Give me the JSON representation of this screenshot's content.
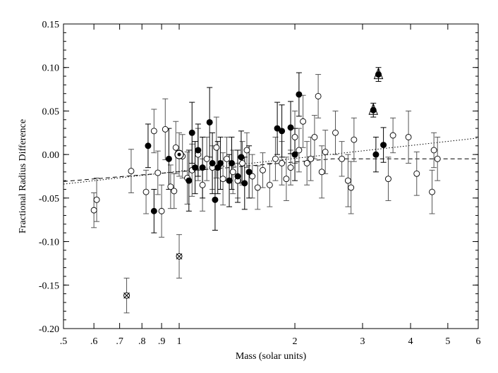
{
  "chart_data": {
    "type": "scatter",
    "title": "",
    "xlabel": "Mass (solar units)",
    "ylabel": "Fractional Radius Difference",
    "xscale": "log",
    "xlim": [
      0.5,
      6
    ],
    "ylim": [
      -0.2,
      0.15
    ],
    "grid": false,
    "x_ticks": [
      {
        "value": 0.5,
        "label": ".5"
      },
      {
        "value": 0.6,
        "label": ".6"
      },
      {
        "value": 0.7,
        "label": ".7"
      },
      {
        "value": 0.8,
        "label": ".8"
      },
      {
        "value": 0.9,
        "label": ".9"
      },
      {
        "value": 1,
        "label": "1"
      },
      {
        "value": 2,
        "label": "2"
      },
      {
        "value": 3,
        "label": "3"
      },
      {
        "value": 4,
        "label": "4"
      },
      {
        "value": 5,
        "label": "5"
      },
      {
        "value": 6,
        "label": "6"
      }
    ],
    "y_ticks": [
      {
        "value": 0.15,
        "label": "0.15"
      },
      {
        "value": 0.1,
        "label": "0.10"
      },
      {
        "value": 0.05,
        "label": "0.05"
      },
      {
        "value": 0.0,
        "label": "0.00"
      },
      {
        "value": -0.05,
        "label": "-0.05"
      },
      {
        "value": -0.1,
        "label": "-0.10"
      },
      {
        "value": -0.15,
        "label": "-0.15"
      },
      {
        "value": -0.2,
        "label": "-0.20"
      }
    ],
    "trend_lines": [
      {
        "style": "dotted",
        "points": [
          [
            0.5,
            -0.034
          ],
          [
            6,
            0.019
          ]
        ]
      },
      {
        "style": "dashed",
        "points": [
          [
            0.5,
            -0.031
          ],
          [
            2.5,
            -0.005
          ],
          [
            6,
            -0.005
          ]
        ]
      }
    ],
    "series": [
      {
        "marker": "open-circle",
        "points": [
          {
            "x": 0.6,
            "y": -0.064,
            "err": 0.02
          },
          {
            "x": 0.61,
            "y": -0.052,
            "err": 0.025
          },
          {
            "x": 0.75,
            "y": -0.019,
            "err": 0.025
          },
          {
            "x": 0.82,
            "y": -0.043,
            "err": 0.025
          },
          {
            "x": 0.86,
            "y": 0.027,
            "err": 0.025
          },
          {
            "x": 0.88,
            "y": -0.021,
            "err": 0.025
          },
          {
            "x": 0.9,
            "y": -0.065,
            "err": 0.03
          },
          {
            "x": 0.92,
            "y": 0.029,
            "err": 0.035
          },
          {
            "x": 0.95,
            "y": -0.037,
            "err": 0.025
          },
          {
            "x": 0.97,
            "y": -0.042,
            "err": 0.02
          },
          {
            "x": 0.98,
            "y": 0.008,
            "err": 0.03
          },
          {
            "x": 1.02,
            "y": -0.002,
            "err": 0.025
          },
          {
            "x": 1.05,
            "y": -0.027,
            "err": 0.03
          },
          {
            "x": 1.08,
            "y": -0.018,
            "err": 0.03
          },
          {
            "x": 1.12,
            "y": 0.0,
            "err": 0.03
          },
          {
            "x": 1.15,
            "y": -0.035,
            "err": 0.03
          },
          {
            "x": 1.18,
            "y": -0.005,
            "err": 0.025
          },
          {
            "x": 1.22,
            "y": -0.015,
            "err": 0.025
          },
          {
            "x": 1.25,
            "y": 0.008,
            "err": 0.035
          },
          {
            "x": 1.3,
            "y": -0.028,
            "err": 0.03
          },
          {
            "x": 1.33,
            "y": -0.005,
            "err": 0.025
          },
          {
            "x": 1.38,
            "y": -0.02,
            "err": 0.025
          },
          {
            "x": 1.42,
            "y": -0.03,
            "err": 0.02
          },
          {
            "x": 1.46,
            "y": -0.01,
            "err": 0.025
          },
          {
            "x": 1.5,
            "y": 0.005,
            "err": 0.02
          },
          {
            "x": 1.55,
            "y": -0.025,
            "err": 0.025
          },
          {
            "x": 1.6,
            "y": -0.038,
            "err": 0.025
          },
          {
            "x": 1.65,
            "y": -0.018,
            "err": 0.02
          },
          {
            "x": 1.72,
            "y": -0.035,
            "err": 0.025
          },
          {
            "x": 1.78,
            "y": -0.005,
            "err": 0.025
          },
          {
            "x": 1.85,
            "y": -0.01,
            "err": 0.025
          },
          {
            "x": 1.9,
            "y": -0.028,
            "err": 0.025
          },
          {
            "x": 1.95,
            "y": -0.015,
            "err": 0.02
          },
          {
            "x": 2.0,
            "y": 0.02,
            "err": 0.03
          },
          {
            "x": 2.05,
            "y": 0.005,
            "err": 0.025
          },
          {
            "x": 2.1,
            "y": 0.038,
            "err": 0.03
          },
          {
            "x": 2.15,
            "y": -0.01,
            "err": 0.025
          },
          {
            "x": 2.2,
            "y": -0.005,
            "err": 0.025
          },
          {
            "x": 2.25,
            "y": 0.02,
            "err": 0.025
          },
          {
            "x": 2.3,
            "y": 0.067,
            "err": 0.025
          },
          {
            "x": 2.35,
            "y": -0.02,
            "err": 0.03
          },
          {
            "x": 2.4,
            "y": 0.003,
            "err": 0.025
          },
          {
            "x": 2.55,
            "y": 0.025,
            "err": 0.025
          },
          {
            "x": 2.65,
            "y": -0.005,
            "err": 0.02
          },
          {
            "x": 2.75,
            "y": -0.03,
            "err": 0.03
          },
          {
            "x": 2.8,
            "y": -0.038,
            "err": 0.03
          },
          {
            "x": 2.85,
            "y": 0.017,
            "err": 0.025
          },
          {
            "x": 3.5,
            "y": -0.028,
            "err": 0.025
          },
          {
            "x": 3.6,
            "y": 0.022,
            "err": 0.02
          },
          {
            "x": 3.95,
            "y": 0.02,
            "err": 0.03
          },
          {
            "x": 4.15,
            "y": -0.022,
            "err": 0.025
          },
          {
            "x": 4.55,
            "y": -0.043,
            "err": 0.025
          },
          {
            "x": 4.6,
            "y": 0.005,
            "err": 0.02
          },
          {
            "x": 4.7,
            "y": -0.005,
            "err": 0.025
          }
        ]
      },
      {
        "marker": "filled-circle",
        "points": [
          {
            "x": 0.83,
            "y": 0.01,
            "err": 0.025
          },
          {
            "x": 0.86,
            "y": -0.065,
            "err": 0.025
          },
          {
            "x": 0.94,
            "y": -0.005,
            "err": 0.035
          },
          {
            "x": 1.06,
            "y": -0.03,
            "err": 0.035
          },
          {
            "x": 1.08,
            "y": 0.025,
            "err": 0.035
          },
          {
            "x": 1.1,
            "y": -0.015,
            "err": 0.03
          },
          {
            "x": 1.12,
            "y": 0.005,
            "err": 0.03
          },
          {
            "x": 1.15,
            "y": -0.015,
            "err": 0.035
          },
          {
            "x": 1.2,
            "y": 0.037,
            "err": 0.04
          },
          {
            "x": 1.22,
            "y": -0.01,
            "err": 0.035
          },
          {
            "x": 1.24,
            "y": -0.052,
            "err": 0.035
          },
          {
            "x": 1.26,
            "y": -0.015,
            "err": 0.03
          },
          {
            "x": 1.28,
            "y": -0.01,
            "err": 0.03
          },
          {
            "x": 1.35,
            "y": -0.03,
            "err": 0.03
          },
          {
            "x": 1.37,
            "y": -0.01,
            "err": 0.03
          },
          {
            "x": 1.42,
            "y": -0.025,
            "err": 0.03
          },
          {
            "x": 1.45,
            "y": -0.003,
            "err": 0.03
          },
          {
            "x": 1.48,
            "y": -0.033,
            "err": 0.03
          },
          {
            "x": 1.52,
            "y": -0.02,
            "err": 0.03
          },
          {
            "x": 1.8,
            "y": 0.03,
            "err": 0.03
          },
          {
            "x": 1.85,
            "y": 0.027,
            "err": 0.03
          },
          {
            "x": 1.95,
            "y": 0.031,
            "err": 0.03
          },
          {
            "x": 2.0,
            "y": 0.0,
            "err": 0.03
          },
          {
            "x": 2.05,
            "y": 0.069,
            "err": 0.025
          },
          {
            "x": 3.2,
            "y": 0.051,
            "err": 0.008
          },
          {
            "x": 3.25,
            "y": 0.0,
            "err": 0.02
          },
          {
            "x": 3.3,
            "y": 0.092,
            "err": 0.008
          },
          {
            "x": 3.4,
            "y": 0.011,
            "err": 0.02
          }
        ]
      },
      {
        "marker": "open-triangle",
        "points": [
          {
            "x": 3.2,
            "y": 0.051
          },
          {
            "x": 3.3,
            "y": 0.092
          }
        ]
      },
      {
        "marker": "crossed-circle",
        "points": [
          {
            "x": 0.73,
            "y": -0.162,
            "err": 0.02
          },
          {
            "x": 1.0,
            "y": -0.117,
            "err": 0.025
          }
        ]
      },
      {
        "marker": "bullseye",
        "points": [
          {
            "x": 1.0,
            "y": 0.0,
            "err": 0.025
          }
        ]
      }
    ]
  }
}
